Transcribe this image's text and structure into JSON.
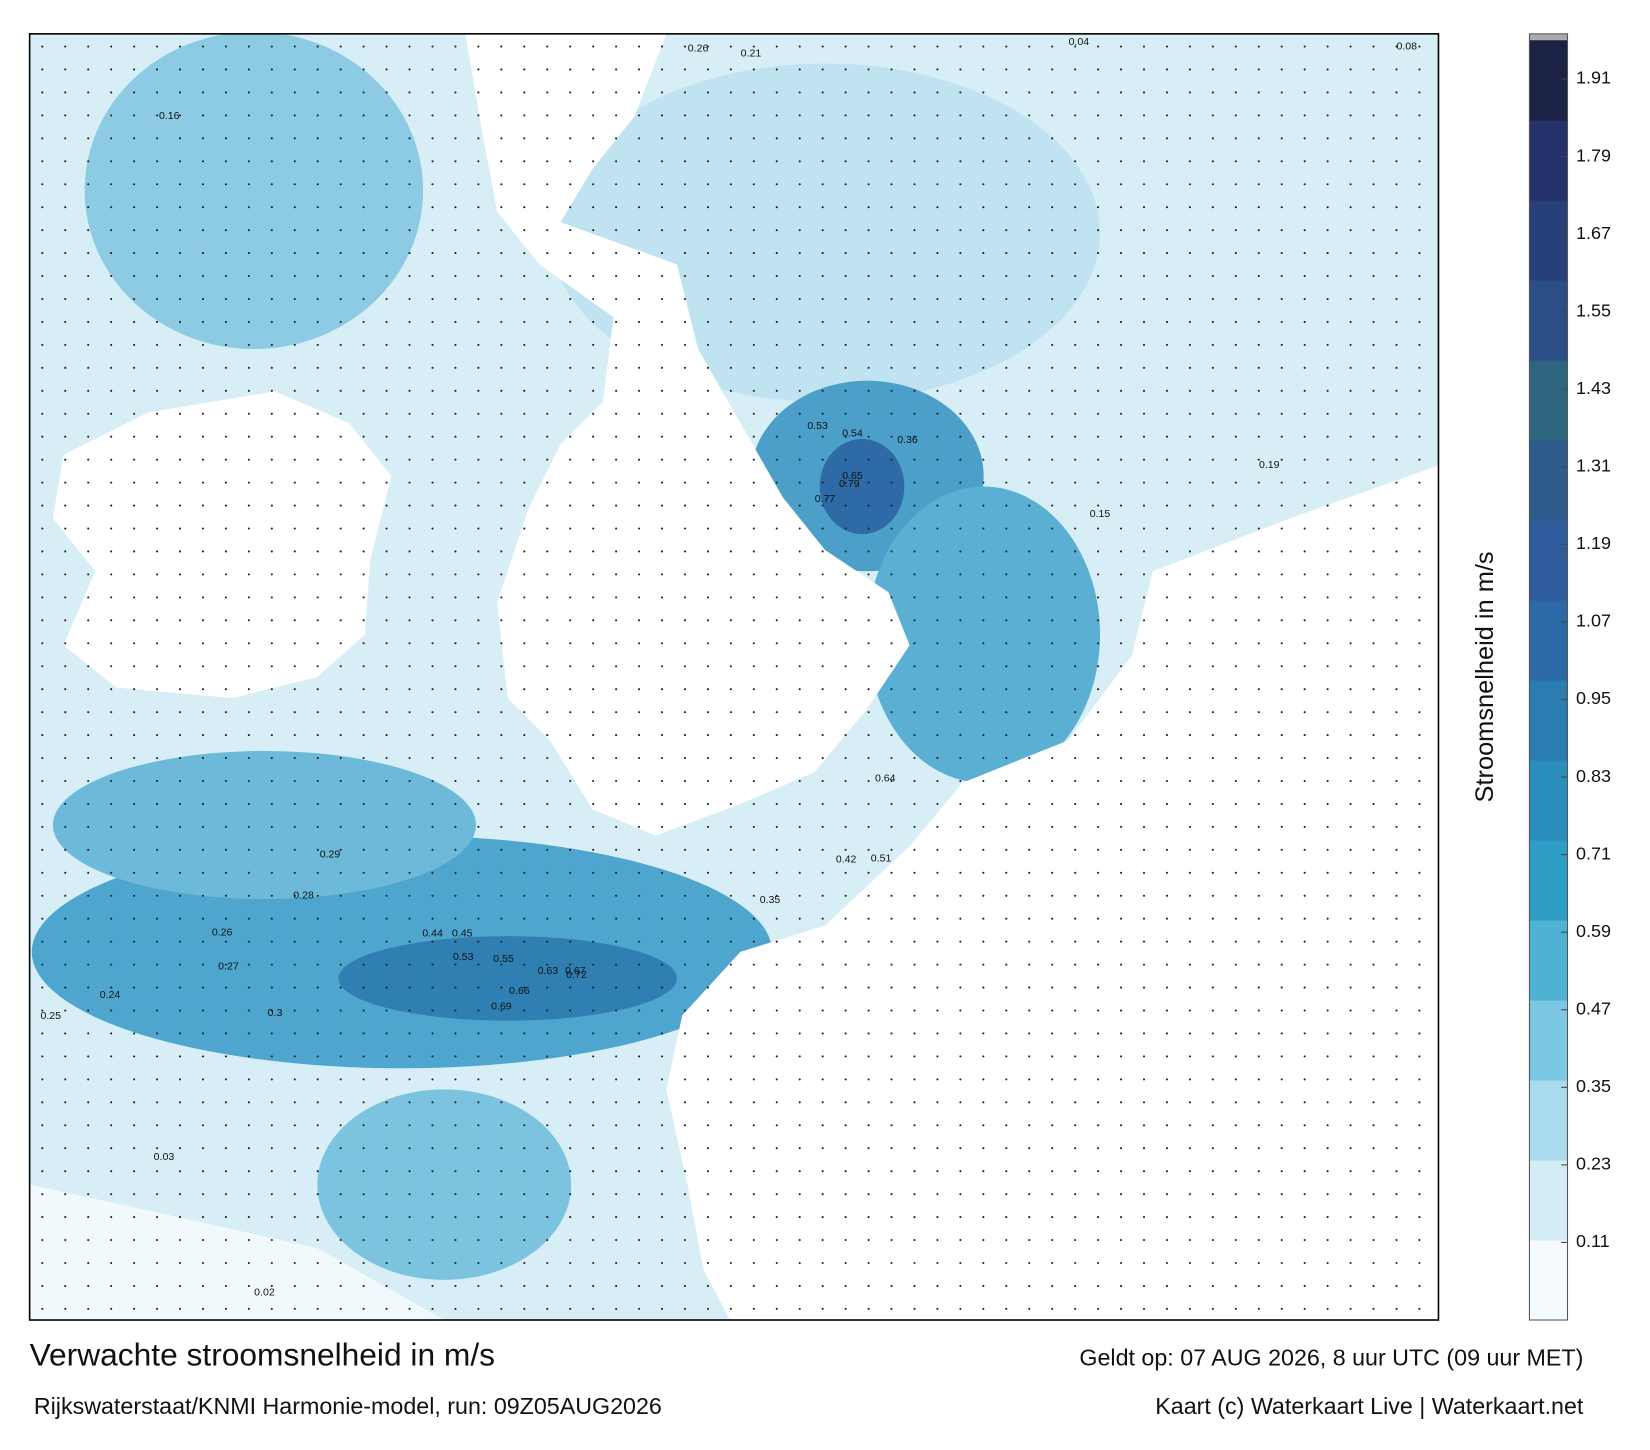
{
  "title": "Verwachte stroomsnelheid in m/s",
  "subtitle": "Rijkswaterstaat/KNMI Harmonie-model, run: 09Z05AUG2026",
  "valid_time": "Geldt op: 07 AUG 2026, 8 uur UTC (09 uur MET)",
  "credit": "Kaart (c) Waterkaart Live | Waterkaart.net",
  "colorbar": {
    "label": "Stroomsnelheid in m/s",
    "range": [
      -0.01,
      1.97
    ],
    "ticks": [
      0.11,
      0.23,
      0.35,
      0.47,
      0.59,
      0.71,
      0.83,
      0.95,
      1.07,
      1.19,
      1.31,
      1.43,
      1.55,
      1.67,
      1.79,
      1.91
    ],
    "colors": [
      "#f4fafd",
      "#d3ecf5",
      "#a9dbed",
      "#7cc7e2",
      "#4fb1d4",
      "#2f9ec7",
      "#2a8dbb",
      "#2b7db1",
      "#2c6aa7",
      "#2d5b9c",
      "#2f5c8c",
      "#2e667f",
      "#2c4e86",
      "#28407a",
      "#24316a",
      "#1c2244"
    ]
  },
  "points": [
    0.72,
    0.66,
    0.69,
    0.63,
    0.67,
    0.55,
    0.53,
    0.44,
    0.45,
    0.65,
    0.79,
    0.77,
    0.54,
    0.53,
    0.36,
    0.64,
    0.51,
    0.42,
    0.35,
    0.3,
    0.29,
    0.28,
    0.26,
    0.27,
    0.25,
    0.24,
    0.03,
    0.02,
    0.15,
    0.19,
    0.08,
    0.04,
    0.26,
    0.21,
    0.16
  ]
}
